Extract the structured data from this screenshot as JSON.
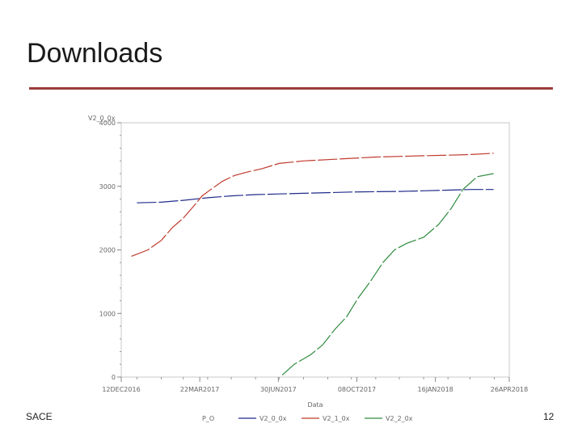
{
  "slide": {
    "title": "Downloads",
    "footer_left": "SACE",
    "page_number": "12"
  },
  "chart_data": {
    "type": "line",
    "title": "",
    "xlabel": "Data",
    "ylabel": "V2_0_0x",
    "xlim": [
      "2016-12-12",
      "2018-04-20"
    ],
    "ylim": [
      0,
      4000
    ],
    "x_ticks": [
      "12DEC2016",
      "22MAR2017",
      "30JUN2017",
      "08OCT2017",
      "16JAN2018",
      "26APR2018"
    ],
    "y_ticks": [
      0,
      1000,
      2000,
      3000,
      4000
    ],
    "y_tick_labels": [
      "0",
      "1000",
      "2000",
      "3000",
      "4000"
    ],
    "legend": {
      "title": "P_O",
      "placement": "bottom"
    },
    "grid": false,
    "series": [
      {
        "name": "V2_0_0x",
        "color": "#1f2a8a",
        "points": [
          [
            "2017-01-01",
            2740
          ],
          [
            "2017-02-01",
            2750
          ],
          [
            "2017-03-01",
            2780
          ],
          [
            "2017-04-01",
            2820
          ],
          [
            "2017-05-01",
            2850
          ],
          [
            "2017-06-01",
            2870
          ],
          [
            "2017-07-01",
            2880
          ],
          [
            "2017-08-01",
            2890
          ],
          [
            "2017-09-01",
            2900
          ],
          [
            "2017-10-01",
            2910
          ],
          [
            "2017-11-01",
            2915
          ],
          [
            "2017-12-01",
            2920
          ],
          [
            "2018-01-01",
            2930
          ],
          [
            "2018-02-01",
            2940
          ],
          [
            "2018-03-01",
            2950
          ],
          [
            "2018-03-31",
            2950
          ]
        ]
      },
      {
        "name": "V2_1_0x",
        "color": "#c0392b",
        "points": [
          [
            "2016-12-25",
            1900
          ],
          [
            "2017-01-15",
            2000
          ],
          [
            "2017-02-01",
            2150
          ],
          [
            "2017-02-15",
            2350
          ],
          [
            "2017-03-01",
            2500
          ],
          [
            "2017-03-15",
            2700
          ],
          [
            "2017-03-25",
            2850
          ],
          [
            "2017-04-05",
            2950
          ],
          [
            "2017-04-20",
            3080
          ],
          [
            "2017-05-05",
            3170
          ],
          [
            "2017-05-20",
            3220
          ],
          [
            "2017-06-10",
            3280
          ],
          [
            "2017-07-01",
            3360
          ],
          [
            "2017-08-01",
            3400
          ],
          [
            "2017-09-01",
            3420
          ],
          [
            "2017-10-01",
            3440
          ],
          [
            "2017-11-01",
            3460
          ],
          [
            "2017-12-01",
            3470
          ],
          [
            "2018-01-01",
            3480
          ],
          [
            "2018-02-01",
            3490
          ],
          [
            "2018-03-01",
            3500
          ],
          [
            "2018-03-31",
            3520
          ]
        ]
      },
      {
        "name": "V2_2_0x",
        "color": "#2e8b3e",
        "points": [
          [
            "2017-07-05",
            30
          ],
          [
            "2017-07-20",
            200
          ],
          [
            "2017-08-10",
            350
          ],
          [
            "2017-08-25",
            500
          ],
          [
            "2017-09-10",
            750
          ],
          [
            "2017-09-25",
            950
          ],
          [
            "2017-10-10",
            1250
          ],
          [
            "2017-10-25",
            1500
          ],
          [
            "2017-11-10",
            1800
          ],
          [
            "2017-11-25",
            2000
          ],
          [
            "2017-12-10",
            2100
          ],
          [
            "2018-01-01",
            2200
          ],
          [
            "2018-01-20",
            2400
          ],
          [
            "2018-02-05",
            2650
          ],
          [
            "2018-02-20",
            2950
          ],
          [
            "2018-03-10",
            3150
          ],
          [
            "2018-03-31",
            3200
          ]
        ]
      }
    ]
  }
}
